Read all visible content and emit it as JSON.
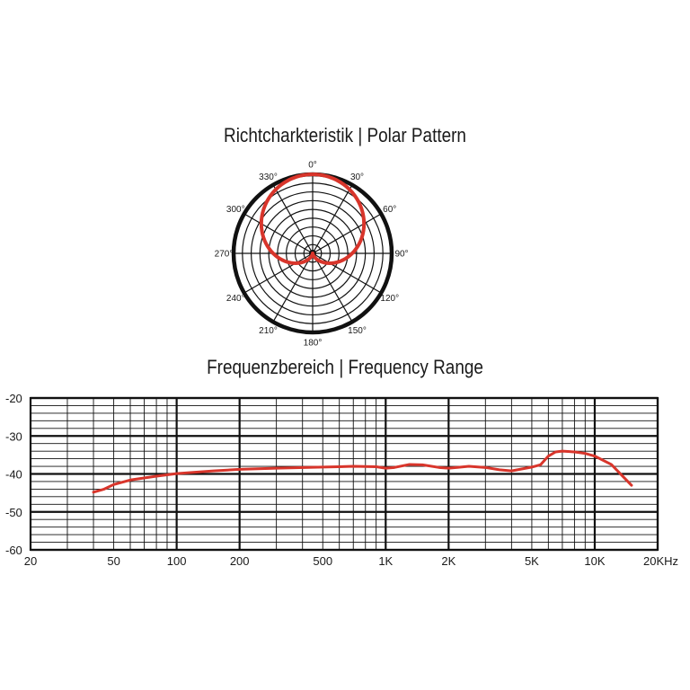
{
  "colors": {
    "curve": "#d8352b",
    "grid": "#111111",
    "text": "#1a1a1a"
  },
  "chart_data": [
    {
      "type": "polar",
      "title": "Richtcharkteristik | Polar Pattern",
      "angle_labels": [
        "0°",
        "30°",
        "60°",
        "90°",
        "120°",
        "150°",
        "180°",
        "210°",
        "240°",
        "270°",
        "300°",
        "330°"
      ],
      "rings": 9,
      "pattern": "cardioid",
      "series": [
        {
          "angles_deg": [
            0,
            30,
            60,
            90,
            120,
            150,
            180,
            210,
            240,
            270,
            300,
            330
          ],
          "relative_level": [
            1.0,
            0.93,
            0.75,
            0.5,
            0.25,
            0.07,
            0.0,
            0.07,
            0.25,
            0.5,
            0.75,
            0.93
          ]
        }
      ]
    },
    {
      "type": "line",
      "title": "Frequenzbereich | Frequency Range",
      "x_scale": "log",
      "xlim": [
        20,
        20000
      ],
      "ylim": [
        -60,
        -20
      ],
      "x_ticks": [
        20,
        50,
        100,
        200,
        500,
        1000,
        2000,
        5000,
        10000,
        20000
      ],
      "x_tick_labels": [
        "20",
        "50",
        "100",
        "200",
        "500",
        "1K",
        "2K",
        "5K",
        "10K",
        "20KHz"
      ],
      "y_ticks": [
        -20,
        -30,
        -40,
        -50,
        -60
      ],
      "y_tick_labels": [
        "-20",
        "-30",
        "-40",
        "-50",
        "-60"
      ],
      "grid": true,
      "series": [
        {
          "x": [
            40,
            45,
            50,
            60,
            80,
            100,
            150,
            200,
            300,
            500,
            700,
            900,
            1000,
            1100,
            1300,
            1500,
            1800,
            2000,
            2500,
            3000,
            3500,
            4000,
            5000,
            5500,
            6000,
            6500,
            7000,
            8000,
            9000,
            10000,
            12000,
            15000
          ],
          "y": [
            -44.8,
            -44.0,
            -42.8,
            -41.6,
            -40.6,
            -39.9,
            -39.2,
            -38.8,
            -38.5,
            -38.2,
            -38.0,
            -38.1,
            -38.5,
            -38.3,
            -37.5,
            -37.6,
            -38.3,
            -38.5,
            -38.0,
            -38.3,
            -38.9,
            -39.2,
            -38.2,
            -37.6,
            -35.3,
            -34.2,
            -34.0,
            -34.2,
            -34.6,
            -35.3,
            -37.5,
            -43.0
          ]
        }
      ]
    }
  ]
}
